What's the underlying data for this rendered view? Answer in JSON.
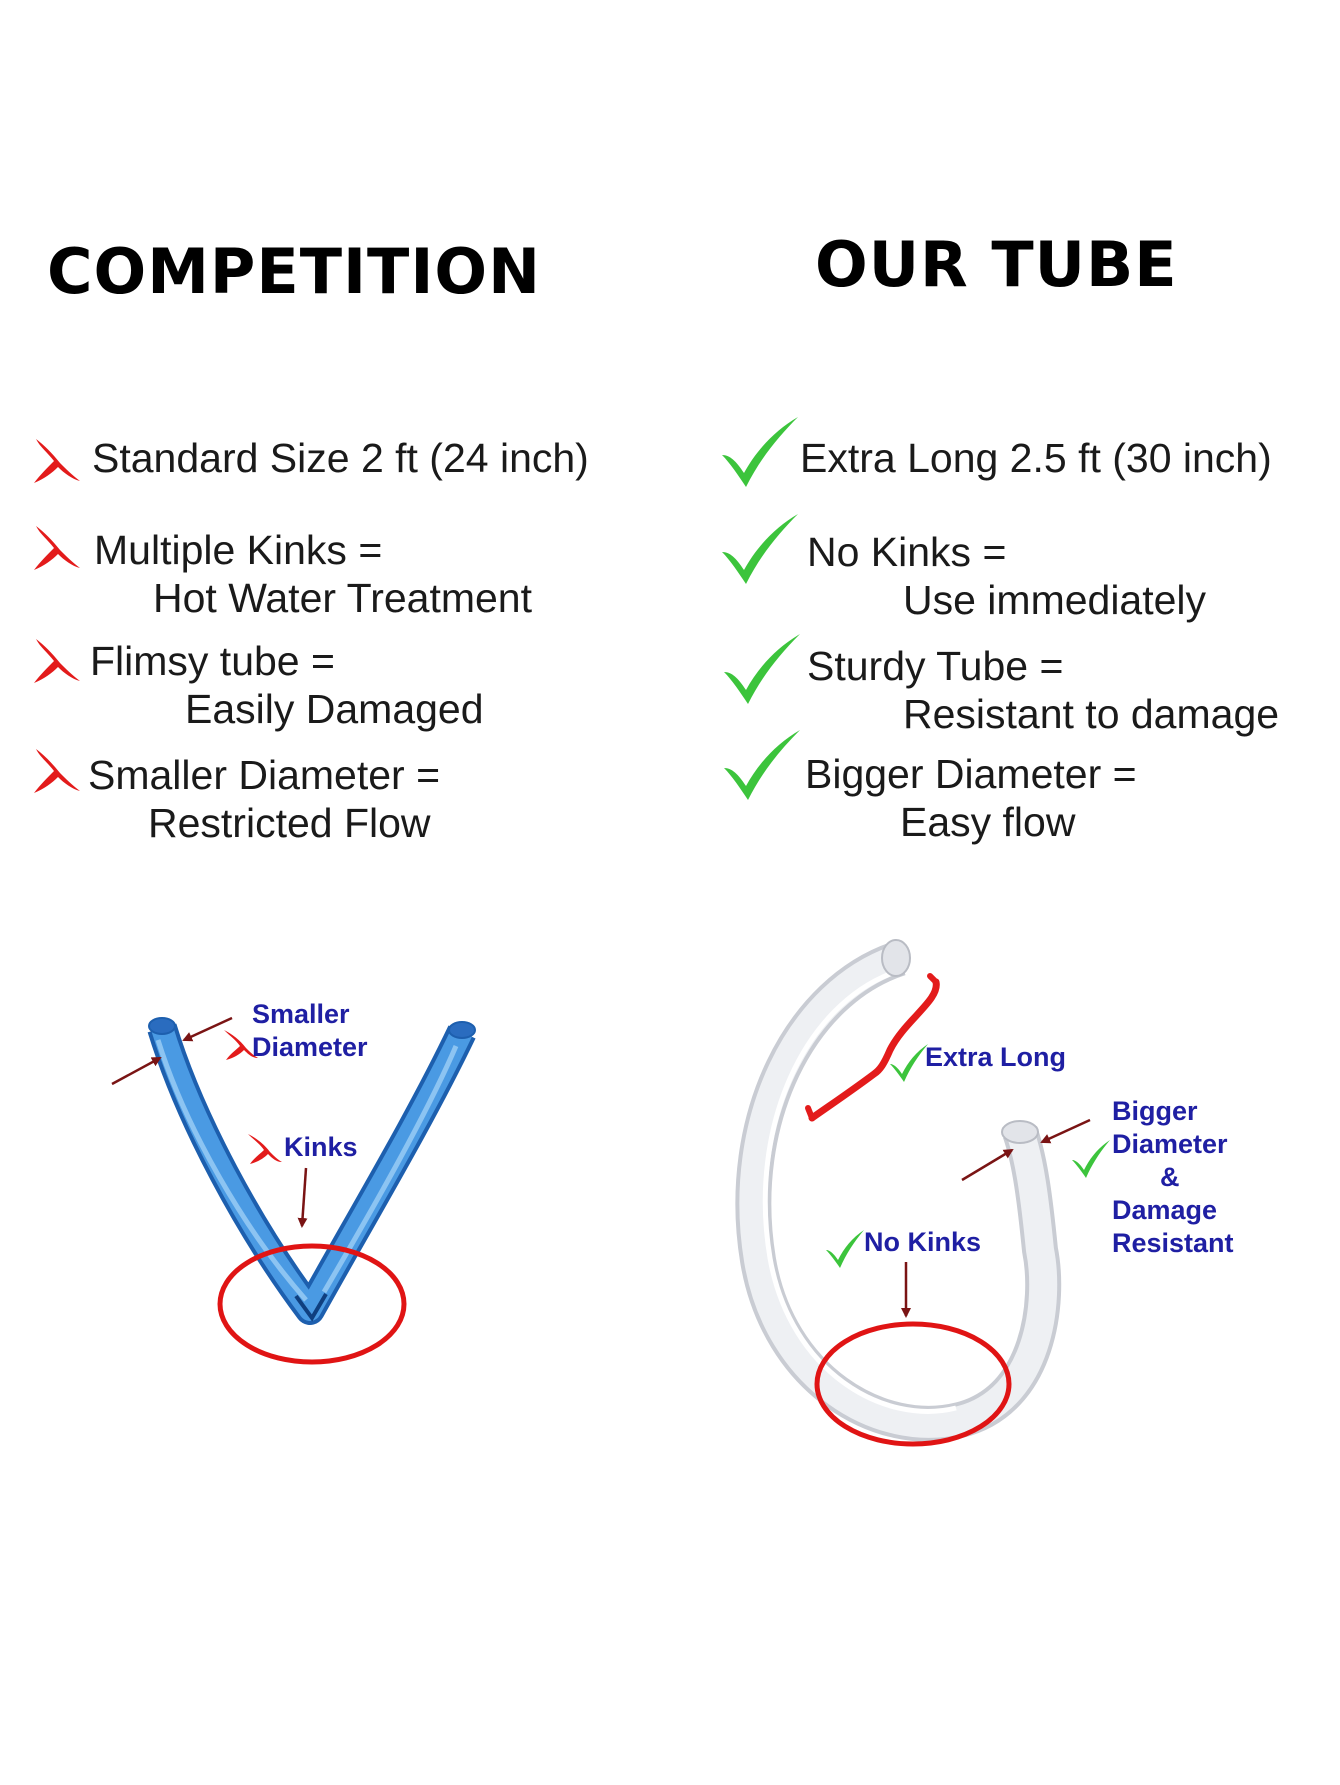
{
  "headings": {
    "left": "COMPETITION",
    "right": "OUR TUBE"
  },
  "competition_items": [
    {
      "line1": "Standard Size 2 ft (24 inch)",
      "line2": ""
    },
    {
      "line1": "Multiple Kinks =",
      "line2": "Hot Water Treatment"
    },
    {
      "line1": "Flimsy tube =",
      "line2": "Easily Damaged"
    },
    {
      "line1": "Smaller Diameter =",
      "line2": "Restricted Flow"
    }
  ],
  "our_tube_items": [
    {
      "line1": "Extra Long 2.5 ft (30 inch)",
      "line2": ""
    },
    {
      "line1": "No Kinks =",
      "line2": "Use immediately"
    },
    {
      "line1": "Sturdy Tube  =",
      "line2": "Resistant to damage"
    },
    {
      "line1": "Bigger Diameter =",
      "line2": "Easy flow"
    }
  ],
  "competition_callouts": {
    "smaller": "Smaller",
    "diameter": "Diameter",
    "kinks": "Kinks"
  },
  "our_tube_callouts": {
    "extra_long": "Extra Long",
    "bigger": "Bigger",
    "diameter": "Diameter",
    "and": "&",
    "damage": "Damage",
    "resistant": "Resistant",
    "no_kinks": "No Kinks"
  },
  "icons": {
    "negative": "red-x-icon",
    "positive": "green-check-icon"
  },
  "colors": {
    "x_mark": "#e31b1b",
    "check_mark": "#3cc43c",
    "callout_text": "#1f1fa3",
    "circle": "#e01414",
    "arrow": "#7a1414",
    "blue_tube": "#3f8fd8",
    "clear_tube": "#e6e8ec"
  }
}
